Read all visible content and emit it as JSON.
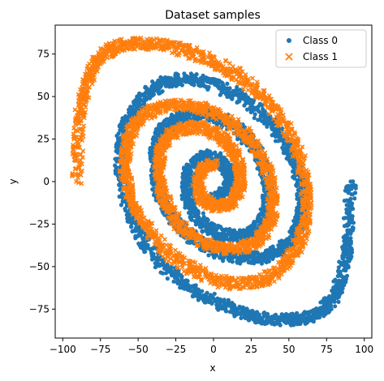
{
  "chart_data": {
    "type": "scatter",
    "title": "Dataset samples",
    "xlabel": "x",
    "ylabel": "y",
    "xlim": [
      -105,
      105
    ],
    "ylim": [
      -92,
      92
    ],
    "xticks": [
      -100,
      -75,
      -50,
      -25,
      0,
      25,
      50,
      75,
      100
    ],
    "yticks": [
      -75,
      -50,
      -25,
      0,
      25,
      50,
      75
    ],
    "grid": false,
    "legend_position": "top-right",
    "series": [
      {
        "name": "Class 0",
        "marker": "circle",
        "color": "#1f77b4",
        "x": [
          0.0,
          6.0,
          10.0,
          11.0,
          8.0,
          3.0,
          -3.0,
          -9.0,
          -14.0,
          -17.0,
          -18.0,
          -17.0,
          -14.0,
          -9.0,
          -2.0,
          6.0,
          14.0,
          22.0,
          28.0,
          32.0,
          35.0,
          36.0,
          36.0,
          34.0,
          30.0,
          24.0,
          16.0,
          7.0,
          -2.0,
          -12.0,
          -21.0,
          -28.0,
          -33.0,
          -37.0,
          -39.0,
          -39.0,
          -38.0,
          -35.0,
          -30.0,
          -23.0,
          -14.0,
          -4.0,
          7.0,
          18.0,
          29.0,
          38.0,
          46.0,
          52.0,
          56.0,
          58.0,
          59.0,
          58.0,
          55.0,
          50.0,
          43.0,
          34.0,
          24.0,
          13.0,
          1.0,
          -11.0,
          -22.0,
          -32.0,
          -41.0,
          -48.0,
          -54.0,
          -58.0,
          -61.0,
          -62.0,
          -61.0,
          -58.0,
          -53.0,
          -46.0,
          -38.0,
          -28.0,
          -17.0,
          -5.0,
          7.0,
          19.0,
          31.0,
          42.0,
          52.0,
          61.0,
          69.0,
          75.0,
          80.0,
          84.0,
          87.0,
          89.0,
          90.0,
          91.0
        ],
        "y": [
          -10.0,
          -8.0,
          -3.0,
          3.0,
          9.0,
          13.0,
          15.0,
          14.0,
          10.0,
          4.0,
          -3.0,
          -10.0,
          -17.0,
          -23.0,
          -28.0,
          -31.0,
          -32.0,
          -31.0,
          -28.0,
          -24.0,
          -18.0,
          -10.0,
          -2.0,
          7.0,
          16.0,
          24.0,
          31.0,
          36.0,
          39.0,
          40.0,
          38.0,
          35.0,
          31.0,
          26.0,
          18.0,
          9.0,
          0.0,
          -9.0,
          -18.0,
          -26.0,
          -33.0,
          -39.0,
          -43.0,
          -45.0,
          -45.0,
          -43.0,
          -39.0,
          -34.0,
          -27.0,
          -19.0,
          -10.0,
          -1.0,
          9.0,
          19.0,
          29.0,
          38.0,
          46.0,
          52.0,
          57.0,
          60.0,
          60.0,
          58.0,
          54.0,
          48.0,
          41.0,
          33.0,
          23.0,
          12.0,
          0.0,
          -12.0,
          -24.0,
          -35.0,
          -45.0,
          -54.0,
          -62.0,
          -68.0,
          -73.0,
          -77.0,
          -80.0,
          -81.0,
          -81.0,
          -80.0,
          -77.0,
          -73.0,
          -67.0,
          -59.0,
          -49.0,
          -37.0,
          -20.0,
          0.0
        ]
      },
      {
        "name": "Class 1",
        "marker": "x",
        "color": "#ff7f0e",
        "x": [
          0.0,
          -6.0,
          -10.0,
          -11.0,
          -8.0,
          -3.0,
          3.0,
          9.0,
          14.0,
          17.0,
          18.0,
          17.0,
          14.0,
          9.0,
          2.0,
          -6.0,
          -14.0,
          -22.0,
          -28.0,
          -32.0,
          -35.0,
          -36.0,
          -36.0,
          -34.0,
          -30.0,
          -24.0,
          -16.0,
          -7.0,
          2.0,
          12.0,
          21.0,
          28.0,
          33.0,
          37.0,
          39.0,
          39.0,
          38.0,
          35.0,
          30.0,
          23.0,
          14.0,
          4.0,
          -7.0,
          -18.0,
          -29.0,
          -38.0,
          -46.0,
          -52.0,
          -56.0,
          -58.0,
          -59.0,
          -58.0,
          -55.0,
          -50.0,
          -43.0,
          -34.0,
          -24.0,
          -13.0,
          -1.0,
          11.0,
          22.0,
          32.0,
          41.0,
          48.0,
          54.0,
          58.0,
          61.0,
          62.0,
          61.0,
          58.0,
          53.0,
          46.0,
          38.0,
          28.0,
          17.0,
          5.0,
          -7.0,
          -19.0,
          -31.0,
          -42.0,
          -52.0,
          -61.0,
          -69.0,
          -75.0,
          -80.0,
          -84.0,
          -87.0,
          -89.0,
          -90.0,
          -91.0
        ],
        "y": [
          10.0,
          8.0,
          3.0,
          -3.0,
          -9.0,
          -13.0,
          -15.0,
          -14.0,
          -10.0,
          -4.0,
          3.0,
          10.0,
          17.0,
          23.0,
          28.0,
          31.0,
          32.0,
          31.0,
          28.0,
          24.0,
          18.0,
          10.0,
          2.0,
          -7.0,
          -16.0,
          -24.0,
          -31.0,
          -36.0,
          -39.0,
          -40.0,
          -38.0,
          -35.0,
          -31.0,
          -26.0,
          -18.0,
          -9.0,
          0.0,
          9.0,
          18.0,
          26.0,
          33.0,
          39.0,
          43.0,
          45.0,
          45.0,
          43.0,
          39.0,
          34.0,
          27.0,
          19.0,
          10.0,
          1.0,
          -9.0,
          -19.0,
          -29.0,
          -38.0,
          -46.0,
          -52.0,
          -57.0,
          -60.0,
          -60.0,
          -58.0,
          -54.0,
          -48.0,
          -41.0,
          -33.0,
          -23.0,
          -12.0,
          0.0,
          12.0,
          24.0,
          35.0,
          45.0,
          54.0,
          62.0,
          68.0,
          73.0,
          77.0,
          80.0,
          81.0,
          81.0,
          80.0,
          77.0,
          73.0,
          67.0,
          59.0,
          49.0,
          37.0,
          20.0,
          0.0
        ]
      }
    ]
  }
}
